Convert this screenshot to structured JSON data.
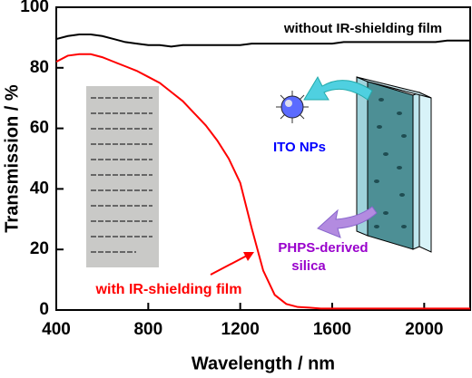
{
  "chart_data": {
    "type": "line",
    "x_label": "Wavelength / nm",
    "y_label": "Transmission / %",
    "x": [
      400,
      450,
      500,
      550,
      600,
      650,
      700,
      750,
      800,
      850,
      900,
      950,
      1000,
      1050,
      1100,
      1150,
      1200,
      1250,
      1300,
      1350,
      1400,
      1450,
      1500,
      1550,
      1600,
      1650,
      1700,
      1750,
      1800,
      1850,
      1900,
      1950,
      2000,
      2050,
      2100,
      2150,
      2200
    ],
    "series": [
      {
        "name": "without IR-shielding film",
        "color": "#000000",
        "values": [
          89.5,
          90.5,
          91,
          91,
          90.5,
          89.5,
          88.5,
          88,
          87.5,
          87.5,
          87,
          87.5,
          87.5,
          87.5,
          87.5,
          87.5,
          87.5,
          88,
          88,
          88,
          88,
          88,
          88,
          88,
          88,
          88.5,
          88.5,
          88.5,
          88.5,
          88.5,
          88.5,
          88.5,
          88.5,
          88.5,
          89,
          89,
          89
        ]
      },
      {
        "name": "with IR-shielding film",
        "color": "#ff0000",
        "values": [
          82,
          84,
          84.5,
          84.5,
          83.5,
          82,
          80.5,
          79,
          77,
          75,
          72,
          69,
          65,
          61,
          56,
          50,
          42,
          27,
          13,
          5,
          2,
          1,
          0.8,
          0.5,
          0.5,
          0.5,
          0.5,
          0.5,
          0.5,
          0.5,
          0.5,
          0.5,
          0.5,
          0.5,
          0.5,
          0.5,
          0.5
        ]
      }
    ],
    "xlim": [
      400,
      2200
    ],
    "xticks": [
      400,
      800,
      1200,
      1600,
      2000
    ],
    "ylim": [
      0,
      100
    ],
    "yticks": [
      0,
      20,
      40,
      60,
      80,
      100
    ],
    "annotations": [
      "ITO NPs",
      "PHPS-derived",
      "silica"
    ]
  }
}
